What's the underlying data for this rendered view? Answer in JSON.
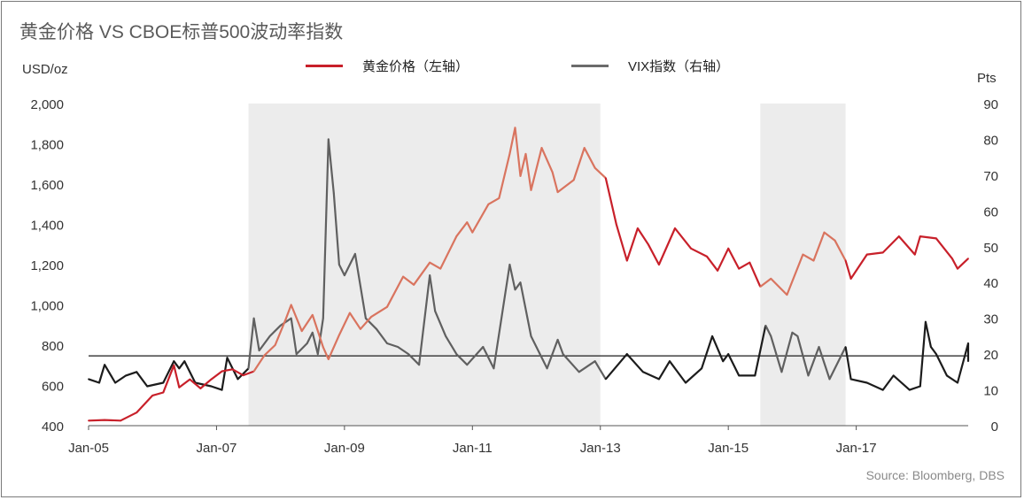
{
  "chart": {
    "title": "黄金价格 VS CBOE标普500波动率指数",
    "left_unit": "USD/oz",
    "right_unit": "Pts",
    "source": "Source: Bloomberg, DBS",
    "legend": [
      {
        "label": "黄金价格（左轴）",
        "color": "#c8202a"
      },
      {
        "label": "VIX指数（右轴）",
        "color": "#6b6b6b"
      }
    ]
  },
  "chart_data": {
    "type": "line",
    "x_ticks": [
      "Jan-05",
      "Jan-07",
      "Jan-09",
      "Jan-11",
      "Jan-13",
      "Jan-15",
      "Jan-17"
    ],
    "y_left_ticks": [
      "400",
      "600",
      "800",
      "1,000",
      "1,200",
      "1,400",
      "1,600",
      "1,800",
      "2,000"
    ],
    "y_right_ticks": [
      "0",
      "10",
      "20",
      "30",
      "40",
      "50",
      "60",
      "70",
      "80",
      "90"
    ],
    "ylim_left": [
      400,
      2000
    ],
    "ylim_right": [
      0,
      90
    ],
    "xlim": [
      "2005-01",
      "2018-10"
    ],
    "shaded_periods": [
      [
        "2007-07",
        "2013-01"
      ],
      [
        "2015-07",
        "2016-11"
      ]
    ],
    "vix_reference_level": 19.5,
    "series": [
      {
        "name": "黄金价格（左轴）",
        "axis": "left",
        "color": "#c8202a",
        "highlight_color": "#d9745f",
        "points": [
          [
            "2005-01",
            425
          ],
          [
            "2005-04",
            428
          ],
          [
            "2005-07",
            425
          ],
          [
            "2005-10",
            465
          ],
          [
            "2006-01",
            550
          ],
          [
            "2006-03",
            565
          ],
          [
            "2006-05",
            700
          ],
          [
            "2006-06",
            590
          ],
          [
            "2006-08",
            630
          ],
          [
            "2006-10",
            585
          ],
          [
            "2006-12",
            630
          ],
          [
            "2007-02",
            670
          ],
          [
            "2007-04",
            680
          ],
          [
            "2007-06",
            650
          ],
          [
            "2007-08",
            670
          ],
          [
            "2007-10",
            750
          ],
          [
            "2007-12",
            800
          ],
          [
            "2008-02",
            930
          ],
          [
            "2008-03",
            1000
          ],
          [
            "2008-05",
            870
          ],
          [
            "2008-07",
            950
          ],
          [
            "2008-09",
            790
          ],
          [
            "2008-10",
            730
          ],
          [
            "2008-12",
            850
          ],
          [
            "2009-02",
            960
          ],
          [
            "2009-04",
            880
          ],
          [
            "2009-06",
            940
          ],
          [
            "2009-09",
            990
          ],
          [
            "2009-12",
            1140
          ],
          [
            "2010-02",
            1100
          ],
          [
            "2010-05",
            1210
          ],
          [
            "2010-07",
            1180
          ],
          [
            "2010-10",
            1340
          ],
          [
            "2010-12",
            1410
          ],
          [
            "2011-01",
            1360
          ],
          [
            "2011-04",
            1500
          ],
          [
            "2011-06",
            1530
          ],
          [
            "2011-08",
            1750
          ],
          [
            "2011-09",
            1880
          ],
          [
            "2011-10",
            1640
          ],
          [
            "2011-11",
            1750
          ],
          [
            "2011-12",
            1570
          ],
          [
            "2012-02",
            1780
          ],
          [
            "2012-04",
            1660
          ],
          [
            "2012-05",
            1560
          ],
          [
            "2012-08",
            1620
          ],
          [
            "2012-10",
            1780
          ],
          [
            "2012-12",
            1680
          ],
          [
            "2013-02",
            1630
          ],
          [
            "2013-04",
            1400
          ],
          [
            "2013-06",
            1220
          ],
          [
            "2013-08",
            1380
          ],
          [
            "2013-10",
            1300
          ],
          [
            "2013-12",
            1200
          ],
          [
            "2014-03",
            1380
          ],
          [
            "2014-06",
            1280
          ],
          [
            "2014-09",
            1240
          ],
          [
            "2014-11",
            1170
          ],
          [
            "2015-01",
            1280
          ],
          [
            "2015-03",
            1180
          ],
          [
            "2015-05",
            1210
          ],
          [
            "2015-07",
            1090
          ],
          [
            "2015-09",
            1130
          ],
          [
            "2015-12",
            1050
          ],
          [
            "2016-03",
            1250
          ],
          [
            "2016-05",
            1220
          ],
          [
            "2016-07",
            1360
          ],
          [
            "2016-09",
            1320
          ],
          [
            "2016-11",
            1220
          ],
          [
            "2016-12",
            1130
          ],
          [
            "2017-03",
            1250
          ],
          [
            "2017-06",
            1260
          ],
          [
            "2017-09",
            1340
          ],
          [
            "2017-12",
            1250
          ],
          [
            "2018-01",
            1340
          ],
          [
            "2018-04",
            1330
          ],
          [
            "2018-07",
            1230
          ],
          [
            "2018-08",
            1180
          ],
          [
            "2018-10",
            1230
          ]
        ]
      },
      {
        "name": "VIX指数（右轴）",
        "axis": "right",
        "color": "#1c1c1c",
        "highlight_color": "#606060",
        "points": [
          [
            "2005-01",
            13
          ],
          [
            "2005-03",
            12
          ],
          [
            "2005-04",
            17
          ],
          [
            "2005-06",
            12
          ],
          [
            "2005-08",
            14
          ],
          [
            "2005-10",
            15
          ],
          [
            "2005-12",
            11
          ],
          [
            "2006-03",
            12
          ],
          [
            "2006-05",
            18
          ],
          [
            "2006-06",
            16
          ],
          [
            "2006-07",
            18
          ],
          [
            "2006-09",
            12
          ],
          [
            "2006-12",
            11
          ],
          [
            "2007-02",
            10
          ],
          [
            "2007-03",
            19
          ],
          [
            "2007-05",
            13
          ],
          [
            "2007-07",
            16
          ],
          [
            "2007-08",
            30
          ],
          [
            "2007-09",
            21
          ],
          [
            "2007-11",
            25
          ],
          [
            "2008-01",
            28
          ],
          [
            "2008-03",
            30
          ],
          [
            "2008-04",
            20
          ],
          [
            "2008-06",
            23
          ],
          [
            "2008-07",
            26
          ],
          [
            "2008-08",
            20
          ],
          [
            "2008-09",
            30
          ],
          [
            "2008-10",
            80
          ],
          [
            "2008-11",
            65
          ],
          [
            "2008-12",
            45
          ],
          [
            "2009-01",
            42
          ],
          [
            "2009-03",
            48
          ],
          [
            "2009-05",
            30
          ],
          [
            "2009-07",
            27
          ],
          [
            "2009-09",
            23
          ],
          [
            "2009-11",
            22
          ],
          [
            "2010-01",
            20
          ],
          [
            "2010-03",
            17
          ],
          [
            "2010-05",
            42
          ],
          [
            "2010-06",
            32
          ],
          [
            "2010-08",
            25
          ],
          [
            "2010-10",
            20
          ],
          [
            "2010-12",
            17
          ],
          [
            "2011-03",
            22
          ],
          [
            "2011-05",
            16
          ],
          [
            "2011-08",
            45
          ],
          [
            "2011-09",
            38
          ],
          [
            "2011-10",
            40
          ],
          [
            "2011-12",
            25
          ],
          [
            "2012-03",
            16
          ],
          [
            "2012-05",
            24
          ],
          [
            "2012-06",
            20
          ],
          [
            "2012-09",
            15
          ],
          [
            "2012-11",
            17
          ],
          [
            "2012-12",
            18
          ],
          [
            "2013-02",
            13
          ],
          [
            "2013-06",
            20
          ],
          [
            "2013-09",
            15
          ],
          [
            "2013-12",
            13
          ],
          [
            "2014-02",
            18
          ],
          [
            "2014-05",
            12
          ],
          [
            "2014-08",
            16
          ],
          [
            "2014-10",
            25
          ],
          [
            "2014-12",
            18
          ],
          [
            "2015-01",
            20
          ],
          [
            "2015-03",
            14
          ],
          [
            "2015-06",
            14
          ],
          [
            "2015-08",
            28
          ],
          [
            "2015-09",
            25
          ],
          [
            "2015-11",
            15
          ],
          [
            "2016-01",
            26
          ],
          [
            "2016-02",
            25
          ],
          [
            "2016-04",
            14
          ],
          [
            "2016-06",
            22
          ],
          [
            "2016-08",
            13
          ],
          [
            "2016-11",
            22
          ],
          [
            "2016-12",
            13
          ],
          [
            "2017-03",
            12
          ],
          [
            "2017-06",
            10
          ],
          [
            "2017-08",
            14
          ],
          [
            "2017-11",
            10
          ],
          [
            "2018-01",
            11
          ],
          [
            "2018-02",
            29
          ],
          [
            "2018-03",
            22
          ],
          [
            "2018-04",
            20
          ],
          [
            "2018-06",
            14
          ],
          [
            "2018-08",
            12
          ],
          [
            "2018-10",
            23
          ],
          [
            "2018-10",
            18
          ]
        ]
      }
    ]
  }
}
